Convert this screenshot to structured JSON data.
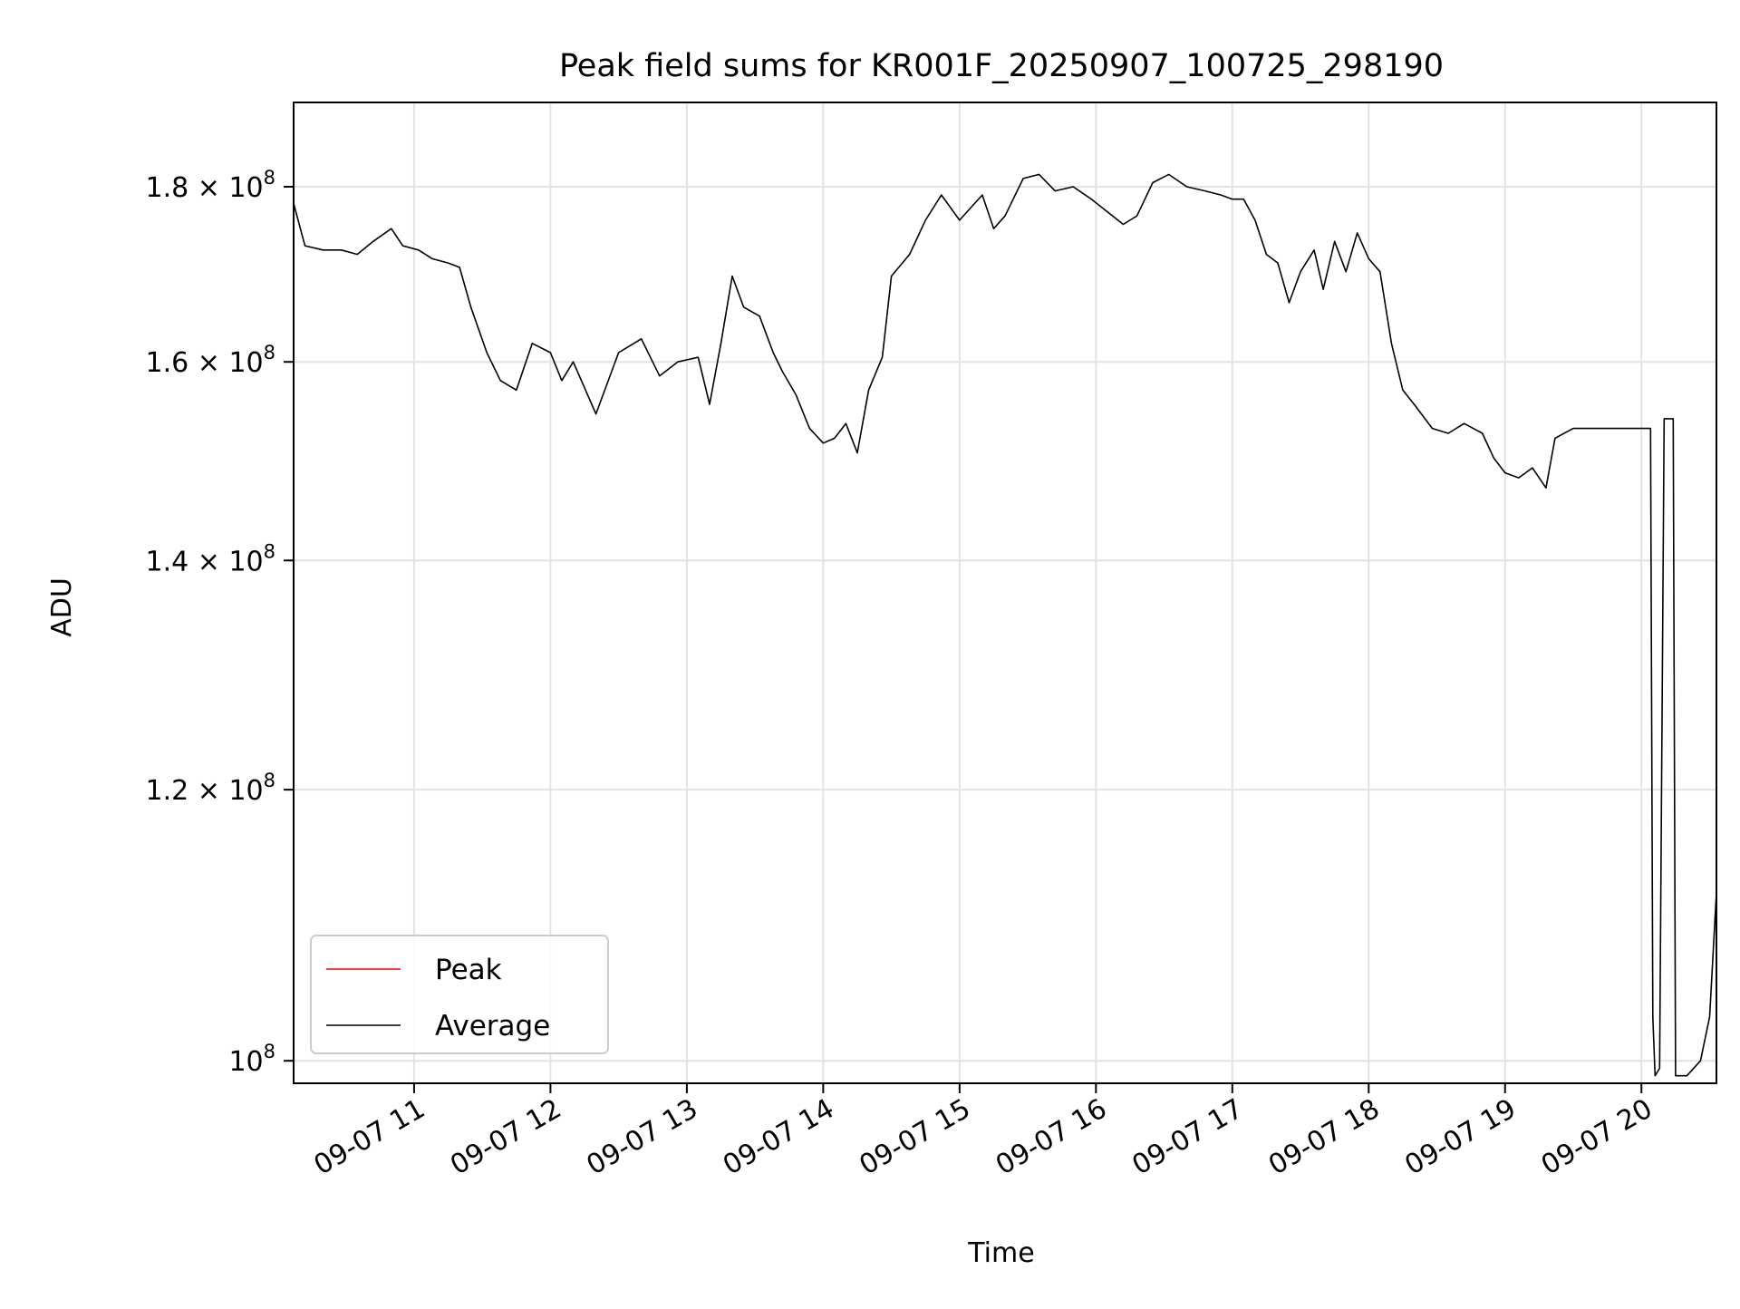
{
  "chart_data": {
    "type": "line",
    "title": "Peak field sums for KR001F_20250907_100725_298190",
    "xlabel": "Time",
    "ylabel": "ADU",
    "y_scale": "log",
    "ylim": [
      98500000,
      190500000
    ],
    "xlim": [
      "09-07 10:07",
      "09-07 20:33"
    ],
    "grid": true,
    "legend_position": "lower-left",
    "x_ticks": [
      {
        "value": "09-07 11:00",
        "label": "09-07 11"
      },
      {
        "value": "09-07 12:00",
        "label": "09-07 12"
      },
      {
        "value": "09-07 13:00",
        "label": "09-07 13"
      },
      {
        "value": "09-07 14:00",
        "label": "09-07 14"
      },
      {
        "value": "09-07 15:00",
        "label": "09-07 15"
      },
      {
        "value": "09-07 16:00",
        "label": "09-07 16"
      },
      {
        "value": "09-07 17:00",
        "label": "09-07 17"
      },
      {
        "value": "09-07 18:00",
        "label": "09-07 18"
      },
      {
        "value": "09-07 19:00",
        "label": "09-07 19"
      },
      {
        "value": "09-07 20:00",
        "label": "09-07 20"
      }
    ],
    "y_ticks": [
      {
        "value": 100000000,
        "base": "10",
        "exp": "8"
      },
      {
        "value": 120000000,
        "mant": "1.2",
        "base": "10",
        "exp": "8"
      },
      {
        "value": 140000000,
        "mant": "1.4",
        "base": "10",
        "exp": "8"
      },
      {
        "value": 160000000,
        "mant": "1.6",
        "base": "10",
        "exp": "8"
      },
      {
        "value": 180000000,
        "mant": "1.8",
        "base": "10",
        "exp": "8"
      }
    ],
    "series": [
      {
        "name": "Average",
        "color": "#000000",
        "points": [
          [
            "09-07 10:07",
            178000000
          ],
          [
            "09-07 10:12",
            173000000
          ],
          [
            "09-07 10:20",
            172500000
          ],
          [
            "09-07 10:28",
            172500000
          ],
          [
            "09-07 10:35",
            172000000
          ],
          [
            "09-07 10:42",
            173500000
          ],
          [
            "09-07 10:50",
            175000000
          ],
          [
            "09-07 10:55",
            173000000
          ],
          [
            "09-07 11:02",
            172500000
          ],
          [
            "09-07 11:08",
            171500000
          ],
          [
            "09-07 11:15",
            171000000
          ],
          [
            "09-07 11:20",
            170500000
          ],
          [
            "09-07 11:25",
            166000000
          ],
          [
            "09-07 11:32",
            161000000
          ],
          [
            "09-07 11:38",
            158000000
          ],
          [
            "09-07 11:45",
            157000000
          ],
          [
            "09-07 11:52",
            162000000
          ],
          [
            "09-07 12:00",
            161000000
          ],
          [
            "09-07 12:05",
            158000000
          ],
          [
            "09-07 12:10",
            160000000
          ],
          [
            "09-07 12:20",
            154500000
          ],
          [
            "09-07 12:30",
            161000000
          ],
          [
            "09-07 12:40",
            162500000
          ],
          [
            "09-07 12:48",
            158500000
          ],
          [
            "09-07 12:56",
            160000000
          ],
          [
            "09-07 13:05",
            160500000
          ],
          [
            "09-07 13:10",
            155500000
          ],
          [
            "09-07 13:15",
            162000000
          ],
          [
            "09-07 13:20",
            169500000
          ],
          [
            "09-07 13:25",
            166000000
          ],
          [
            "09-07 13:32",
            165000000
          ],
          [
            "09-07 13:38",
            161000000
          ],
          [
            "09-07 13:42",
            159000000
          ],
          [
            "09-07 13:48",
            156500000
          ],
          [
            "09-07 13:54",
            153000000
          ],
          [
            "09-07 14:00",
            151500000
          ],
          [
            "09-07 14:05",
            152000000
          ],
          [
            "09-07 14:10",
            153500000
          ],
          [
            "09-07 14:15",
            150500000
          ],
          [
            "09-07 14:20",
            157000000
          ],
          [
            "09-07 14:26",
            160500000
          ],
          [
            "09-07 14:30",
            169500000
          ],
          [
            "09-07 14:38",
            172000000
          ],
          [
            "09-07 14:45",
            176000000
          ],
          [
            "09-07 14:52",
            179000000
          ],
          [
            "09-07 15:00",
            176000000
          ],
          [
            "09-07 15:05",
            177500000
          ],
          [
            "09-07 15:10",
            179000000
          ],
          [
            "09-07 15:15",
            175000000
          ],
          [
            "09-07 15:20",
            176500000
          ],
          [
            "09-07 15:28",
            181000000
          ],
          [
            "09-07 15:35",
            181500000
          ],
          [
            "09-07 15:42",
            179500000
          ],
          [
            "09-07 15:50",
            180000000
          ],
          [
            "09-07 15:58",
            178500000
          ],
          [
            "09-07 16:05",
            177000000
          ],
          [
            "09-07 16:12",
            175500000
          ],
          [
            "09-07 16:18",
            176500000
          ],
          [
            "09-07 16:25",
            180500000
          ],
          [
            "09-07 16:32",
            181500000
          ],
          [
            "09-07 16:40",
            180000000
          ],
          [
            "09-07 16:48",
            179500000
          ],
          [
            "09-07 16:55",
            179000000
          ],
          [
            "09-07 17:00",
            178500000
          ],
          [
            "09-07 17:05",
            178500000
          ],
          [
            "09-07 17:10",
            176000000
          ],
          [
            "09-07 17:15",
            172000000
          ],
          [
            "09-07 17:20",
            171000000
          ],
          [
            "09-07 17:25",
            166500000
          ],
          [
            "09-07 17:30",
            170000000
          ],
          [
            "09-07 17:36",
            172500000
          ],
          [
            "09-07 17:40",
            168000000
          ],
          [
            "09-07 17:45",
            173500000
          ],
          [
            "09-07 17:50",
            170000000
          ],
          [
            "09-07 17:55",
            174500000
          ],
          [
            "09-07 18:00",
            171500000
          ],
          [
            "09-07 18:05",
            170000000
          ],
          [
            "09-07 18:10",
            162000000
          ],
          [
            "09-07 18:15",
            157000000
          ],
          [
            "09-07 18:20",
            155500000
          ],
          [
            "09-07 18:28",
            153000000
          ],
          [
            "09-07 18:35",
            152500000
          ],
          [
            "09-07 18:42",
            153500000
          ],
          [
            "09-07 18:50",
            152500000
          ],
          [
            "09-07 18:55",
            150000000
          ],
          [
            "09-07 19:00",
            148500000
          ],
          [
            "09-07 19:06",
            148000000
          ],
          [
            "09-07 19:12",
            149000000
          ],
          [
            "09-07 19:18",
            147000000
          ],
          [
            "09-07 19:22",
            152000000
          ],
          [
            "09-07 19:30",
            153000000
          ],
          [
            "09-07 19:40",
            153000000
          ],
          [
            "09-07 19:50",
            153000000
          ],
          [
            "09-07 20:00",
            153000000
          ],
          [
            "09-07 20:04",
            153000000
          ],
          [
            "09-07 20:05",
            103000000
          ],
          [
            "09-07 20:06",
            99000000
          ],
          [
            "09-07 20:08",
            99500000
          ],
          [
            "09-07 20:10",
            154000000
          ],
          [
            "09-07 20:14",
            154000000
          ],
          [
            "09-07 20:15",
            99000000
          ],
          [
            "09-07 20:20",
            99000000
          ],
          [
            "09-07 20:26",
            100000000
          ],
          [
            "09-07 20:30",
            103000000
          ],
          [
            "09-07 20:33",
            112000000
          ]
        ]
      },
      {
        "name": "Peak",
        "color": "#ff0000",
        "points": []
      }
    ]
  }
}
